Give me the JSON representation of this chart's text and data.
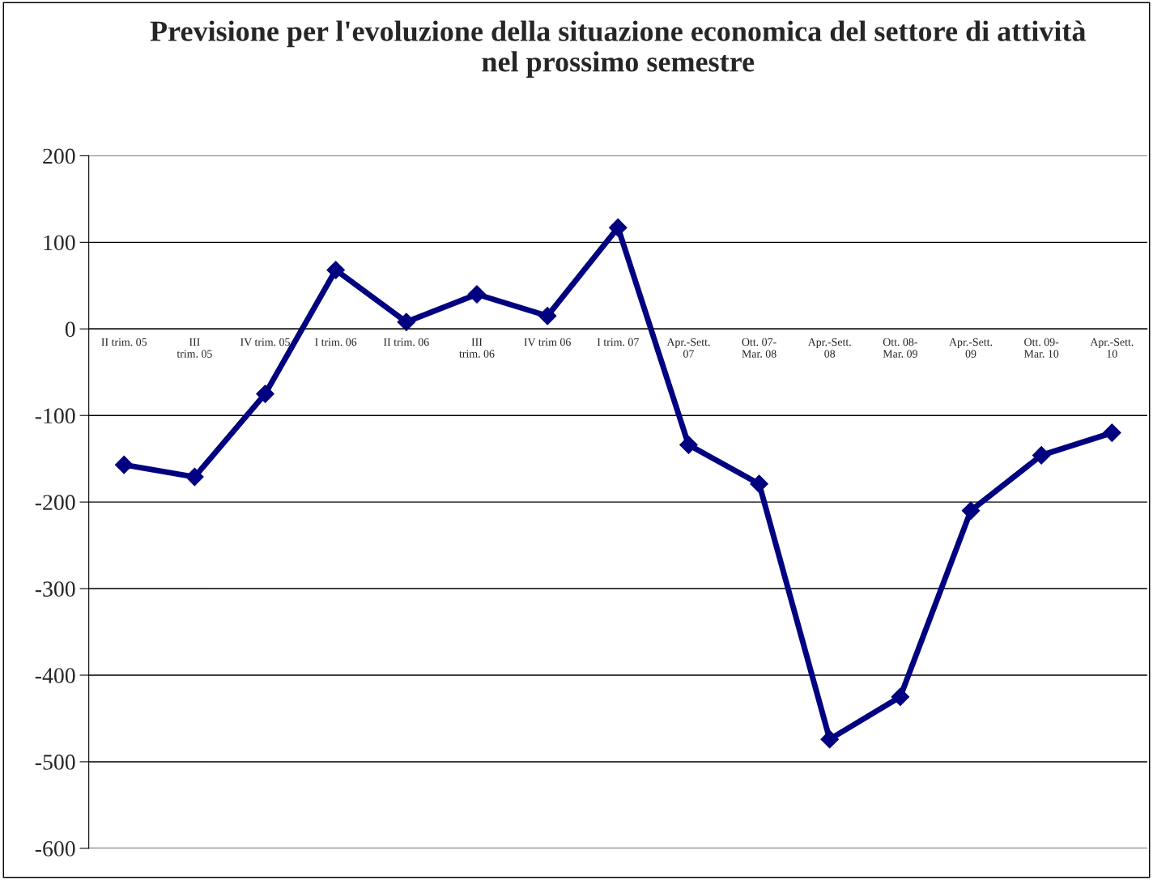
{
  "chart_data": {
    "type": "line",
    "title": "Previsione per l'evoluzione della situazione economica del settore di attività\nnel prossimo semestre",
    "categories": [
      "II trim. 05",
      "III trim. 05",
      "IV trim. 05",
      "I trim. 06",
      "II trim. 06",
      "III trim. 06",
      "IV trim 06",
      "I trim. 07",
      "Apr.-Sett. 07",
      "Ott. 07- Mar. 08",
      "Apr.-Sett. 08",
      "Ott. 08- Mar. 09",
      "Apr.-Sett. 09",
      "Ott. 09- Mar. 10",
      "Apr.-Sett. 10"
    ],
    "series": [
      {
        "color": "#000080",
        "values": [
          -157,
          -171,
          -75,
          68,
          8,
          40,
          15,
          117,
          -134,
          -179,
          -474,
          -425,
          -210,
          -146,
          -120
        ]
      }
    ],
    "ylim": [
      -600,
      200
    ],
    "yticks": [
      -600,
      -500,
      -400,
      -300,
      -200,
      -100,
      0,
      100,
      200
    ],
    "grid": "y",
    "marker": "diamond",
    "line_style": "solid"
  }
}
